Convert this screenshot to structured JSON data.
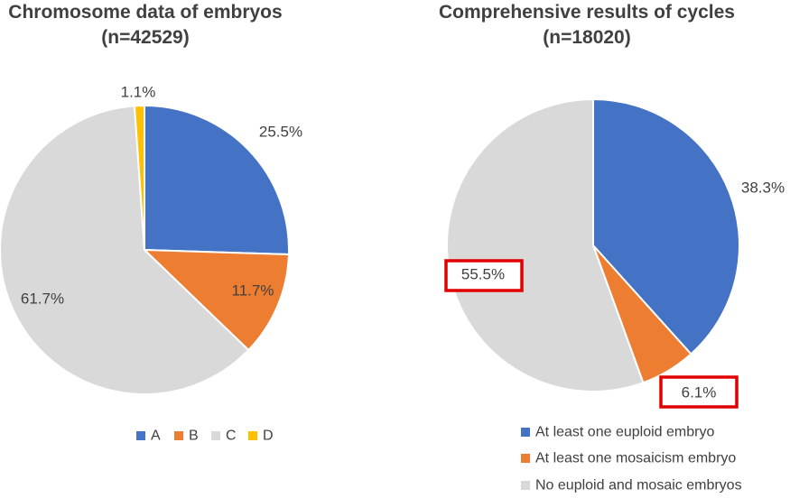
{
  "chart_data": [
    {
      "type": "pie",
      "title": "Chromosome data of embryos",
      "subtitle": "(n=42529)",
      "categories": [
        "A",
        "B",
        "C",
        "D"
      ],
      "values": [
        25.5,
        11.7,
        61.7,
        1.1
      ],
      "labels": [
        "25.5%",
        "11.7%",
        "61.7%",
        "1.1%"
      ],
      "colors": [
        "#4472C4",
        "#ED7D31",
        "#D9D9D9",
        "#FFC000"
      ],
      "legend_position": "bottom"
    },
    {
      "type": "pie",
      "title": "Comprehensive results of cycles",
      "subtitle": "(n=18020)",
      "categories": [
        "At least one euploid embryo",
        "At least one mosaicism embryo",
        "No euploid and mosaic embryos"
      ],
      "values": [
        38.3,
        6.1,
        55.5
      ],
      "labels": [
        "38.3%",
        "6.1%",
        "55.5%"
      ],
      "highlighted_labels": [
        "6.1%",
        "55.5%"
      ],
      "highlight_color": "#E00000",
      "colors": [
        "#4472C4",
        "#ED7D31",
        "#D9D9D9"
      ],
      "legend_position": "bottom"
    }
  ]
}
